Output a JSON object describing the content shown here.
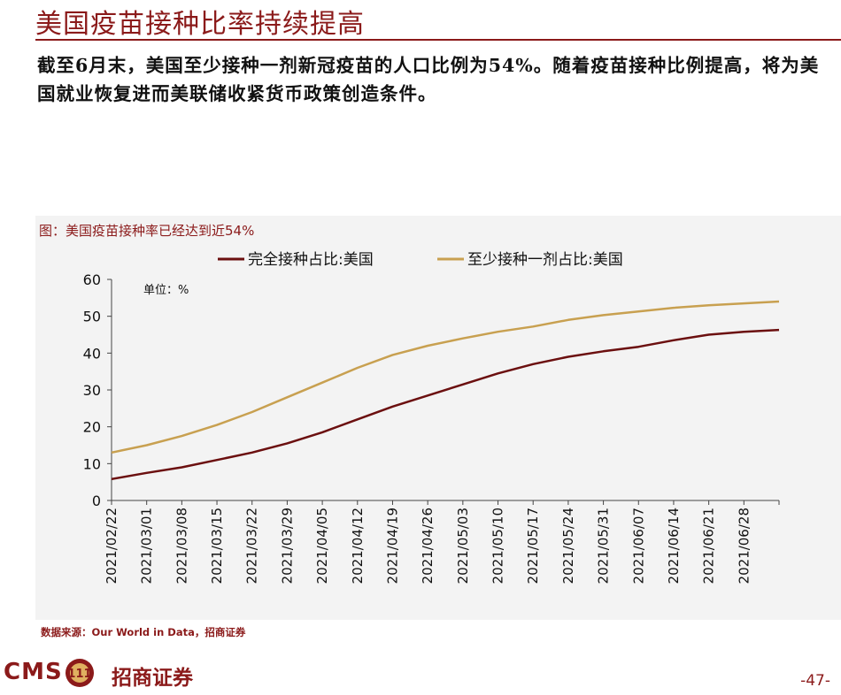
{
  "header": {
    "title": "美国疫苗接种比率持续提高",
    "summary": "截至6月末，美国至少接种一剂新冠疫苗的人口比例为54%。随着疫苗接种比例提高，将为美国就业恢复进而美联储收紧货币政策创造条件。"
  },
  "figure": {
    "title": "图：美国疫苗接种率已经达到近54%",
    "unit_label": "单位：%",
    "source": "数据来源：Our World in Data，招商证券"
  },
  "chart_data": {
    "type": "line",
    "title": "图：美国疫苗接种率已经达到近54%",
    "ylabel": "单位：%",
    "ylim": [
      0,
      60
    ],
    "yticks": [
      "0",
      "10",
      "20",
      "30",
      "40",
      "50",
      "60"
    ],
    "x_ticks": [
      "2021/02/22",
      "2021/03/01",
      "2021/03/08",
      "2021/03/15",
      "2021/03/22",
      "2021/03/29",
      "2021/04/05",
      "2021/04/12",
      "2021/04/19",
      "2021/04/26",
      "2021/05/03",
      "2021/05/10",
      "2021/05/17",
      "2021/05/24",
      "2021/05/31",
      "2021/06/07",
      "2021/06/14",
      "2021/06/21",
      "2021/06/28"
    ],
    "x": [
      "2021/02/22",
      "2021/03/01",
      "2021/03/08",
      "2021/03/15",
      "2021/03/22",
      "2021/03/29",
      "2021/04/05",
      "2021/04/12",
      "2021/04/19",
      "2021/04/26",
      "2021/05/03",
      "2021/05/10",
      "2021/05/17",
      "2021/05/24",
      "2021/05/31",
      "2021/06/07",
      "2021/06/14",
      "2021/06/21",
      "2021/06/28",
      "2021/07/02"
    ],
    "series": [
      {
        "name": "完全接种占比:美国",
        "color": "#6b0f0f",
        "values": [
          5.8,
          7.5,
          9.0,
          11.0,
          13.0,
          15.5,
          18.5,
          22.0,
          25.5,
          28.5,
          31.5,
          34.5,
          37.0,
          39.0,
          40.5,
          41.7,
          43.5,
          45.0,
          45.8,
          46.3
        ]
      },
      {
        "name": "至少接种一剂占比:美国",
        "color": "#c8a050",
        "values": [
          13.0,
          15.0,
          17.5,
          20.5,
          24.0,
          28.0,
          32.0,
          36.0,
          39.5,
          42.0,
          44.0,
          45.8,
          47.2,
          49.0,
          50.3,
          51.3,
          52.3,
          53.0,
          53.5,
          54.0
        ]
      }
    ]
  },
  "footer": {
    "cms": "CMS",
    "logo_text": "111",
    "brand": "招商证券",
    "page_number": "-47-"
  }
}
